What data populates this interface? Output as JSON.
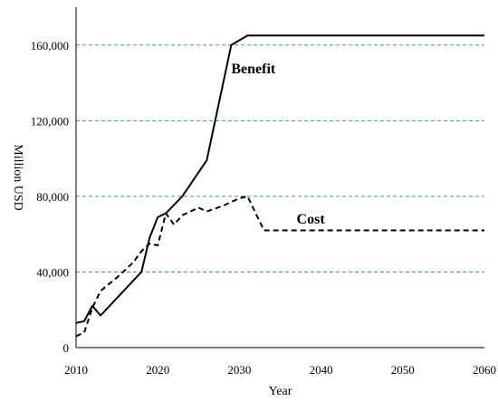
{
  "chart_data": {
    "type": "line",
    "title": "",
    "xlabel": "Year",
    "ylabel": "Million USD",
    "xlim": [
      2010,
      2060
    ],
    "ylim": [
      0,
      180000
    ],
    "xticks": [
      2010,
      2020,
      2030,
      2040,
      2050,
      2060
    ],
    "xtick_labels": [
      "2010",
      "2020",
      "2030",
      "2040",
      "2050",
      "2060"
    ],
    "yticks": [
      0,
      40000,
      80000,
      120000,
      160000
    ],
    "ytick_labels": [
      "0",
      "40,000",
      "80,000",
      "120,000",
      "160,000"
    ],
    "grid": {
      "horizontal": true,
      "style": "dashed",
      "color": "#3a8fd0",
      "values": [
        40000,
        80000,
        120000,
        160000
      ]
    },
    "legend": "none",
    "series": [
      {
        "name": "Benefit",
        "line_style": "solid",
        "color": "#000000",
        "x": [
          2010,
          2011,
          2012,
          2013,
          2018,
          2019,
          2020,
          2021,
          2023,
          2026,
          2029,
          2031,
          2060
        ],
        "y": [
          13000,
          14000,
          22000,
          17000,
          40000,
          58000,
          69000,
          71000,
          80000,
          99000,
          160000,
          165000,
          165000
        ]
      },
      {
        "name": "Cost",
        "line_style": "dashed",
        "color": "#000000",
        "x": [
          2010,
          2011,
          2012,
          2013,
          2015,
          2017,
          2018,
          2019,
          2020,
          2021,
          2022,
          2023,
          2025,
          2026,
          2028,
          2030,
          2031,
          2033,
          2060
        ],
        "y": [
          6000,
          8000,
          21000,
          30000,
          37000,
          45000,
          51000,
          55000,
          54000,
          71000,
          65000,
          70000,
          74000,
          72000,
          75000,
          79000,
          80000,
          62000,
          62000
        ]
      }
    ]
  }
}
